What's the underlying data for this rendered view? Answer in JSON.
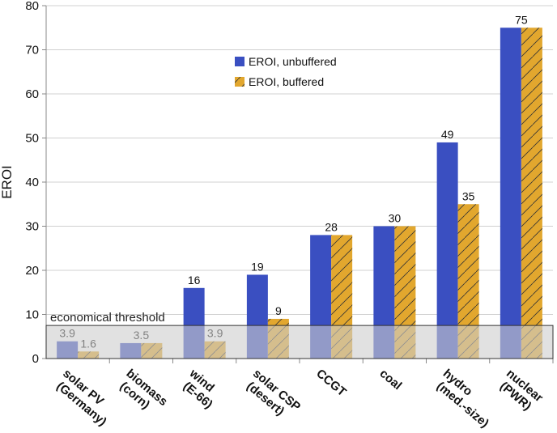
{
  "chart_data": {
    "type": "bar",
    "ylabel": "EROI",
    "categories": [
      [
        "solar PV",
        "(Germany)"
      ],
      [
        "biomass",
        "(corn)"
      ],
      [
        "wind",
        "(E-66)"
      ],
      [
        "solar CSP",
        "(desert)"
      ],
      [
        "CCGT"
      ],
      [
        "coal"
      ],
      [
        "hydro",
        "(med.-size)"
      ],
      [
        "nuclear",
        "(PWR)"
      ]
    ],
    "series": [
      {
        "name": "EROI, unbuffered",
        "color": "#3a4fc1",
        "values": [
          3.9,
          3.5,
          16,
          19,
          28,
          30,
          49,
          75
        ]
      },
      {
        "name": "EROI, buffered",
        "color": "#e2a72e",
        "hatch": true,
        "values": [
          1.6,
          3.5,
          3.9,
          9,
          28,
          30,
          35,
          75
        ]
      }
    ],
    "ylim": [
      0,
      80
    ],
    "yticks": [
      0,
      10,
      20,
      30,
      40,
      50,
      60,
      70,
      80
    ],
    "grid": true,
    "threshold": {
      "label": "economical threshold",
      "value": 7.5
    }
  }
}
